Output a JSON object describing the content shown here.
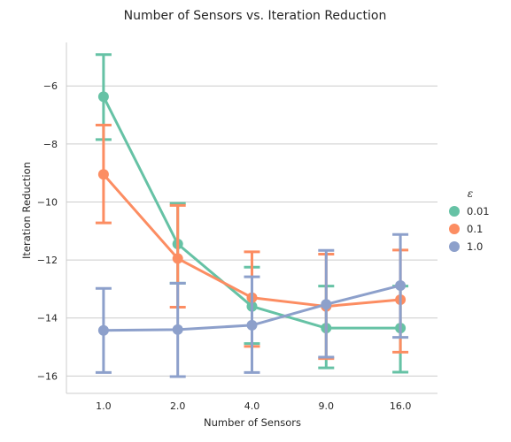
{
  "chart_data": {
    "type": "line",
    "title": "Number of Sensors vs. Iteration Reduction",
    "xlabel": "Number of Sensors",
    "ylabel": "Iteration Reduction",
    "categories": [
      "1.0",
      "2.0",
      "4.0",
      "9.0",
      "16.0"
    ],
    "ylim": [
      -16.6,
      -4.5
    ],
    "yticks": [
      -6,
      -8,
      -10,
      -12,
      -14,
      -16
    ],
    "ytick_labels": [
      "−6",
      "−8",
      "−10",
      "−12",
      "−14",
      "−16"
    ],
    "grid": "horizontal",
    "legend": {
      "title": "ε",
      "placement": "right"
    },
    "series": [
      {
        "name": "0.01",
        "color": "#66c2a5",
        "values": [
          -6.37,
          -11.45,
          -13.6,
          -14.35,
          -14.35
        ],
        "ci_low": [
          -7.85,
          -12.8,
          -14.88,
          -15.72,
          -15.87
        ],
        "ci_high": [
          -4.92,
          -10.05,
          -12.25,
          -12.9,
          -12.9
        ]
      },
      {
        "name": "0.1",
        "color": "#fc8d62",
        "values": [
          -9.05,
          -11.95,
          -13.3,
          -13.6,
          -13.37
        ],
        "ci_low": [
          -10.72,
          -13.63,
          -14.98,
          -15.4,
          -15.18
        ],
        "ci_high": [
          -7.35,
          -10.12,
          -11.72,
          -11.8,
          -11.66
        ]
      },
      {
        "name": "1.0",
        "color": "#8da0cb",
        "values": [
          -14.43,
          -14.4,
          -14.25,
          -13.53,
          -12.88
        ],
        "ci_low": [
          -15.88,
          -16.02,
          -15.88,
          -15.35,
          -14.67
        ],
        "ci_high": [
          -12.98,
          -12.8,
          -12.58,
          -11.67,
          -11.12
        ]
      }
    ]
  }
}
